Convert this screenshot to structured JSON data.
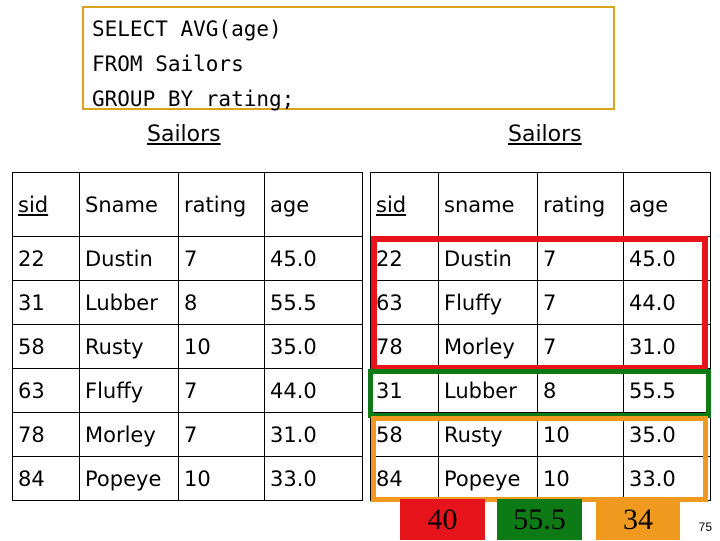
{
  "query": {
    "lines": [
      "SELECT AVG(age)",
      "FROM Sailors",
      "GROUP BY rating;"
    ]
  },
  "left_table": {
    "caption": "Sailors",
    "headers": [
      "sid",
      "Sname",
      "rating",
      "age"
    ],
    "rows": [
      [
        "22",
        "Dustin",
        "7",
        "45.0"
      ],
      [
        "31",
        "Lubber",
        "8",
        "55.5"
      ],
      [
        "58",
        "Rusty",
        "10",
        "35.0"
      ],
      [
        "63",
        "Fluffy",
        "7",
        "44.0"
      ],
      [
        "78",
        "Morley",
        "7",
        "31.0"
      ],
      [
        "84",
        "Popeye",
        "10",
        "33.0"
      ]
    ]
  },
  "right_table": {
    "caption": "Sailors",
    "headers": [
      "sid",
      "sname",
      "rating",
      "age"
    ],
    "rows": [
      [
        "22",
        "Dustin",
        "7",
        "45.0"
      ],
      [
        "63",
        "Fluffy",
        "7",
        "44.0"
      ],
      [
        "78",
        "Morley",
        "7",
        "31.0"
      ],
      [
        "31",
        "Lubber",
        "8",
        "55.5"
      ],
      [
        "58",
        "Rusty",
        "10",
        "35.0"
      ],
      [
        "84",
        "Popeye",
        "10",
        "33.0"
      ]
    ]
  },
  "groups": [
    {
      "rating": "7",
      "color": "#e8141b"
    },
    {
      "rating": "8",
      "color": "#0e7a16"
    },
    {
      "rating": "10",
      "color": "#ef9a1e"
    }
  ],
  "results": [
    {
      "value": "40",
      "color": "#e8141b"
    },
    {
      "value": "55.5",
      "color": "#0e7a16"
    },
    {
      "value": "34",
      "color": "#ef9a1e"
    }
  ],
  "page_number": "75"
}
